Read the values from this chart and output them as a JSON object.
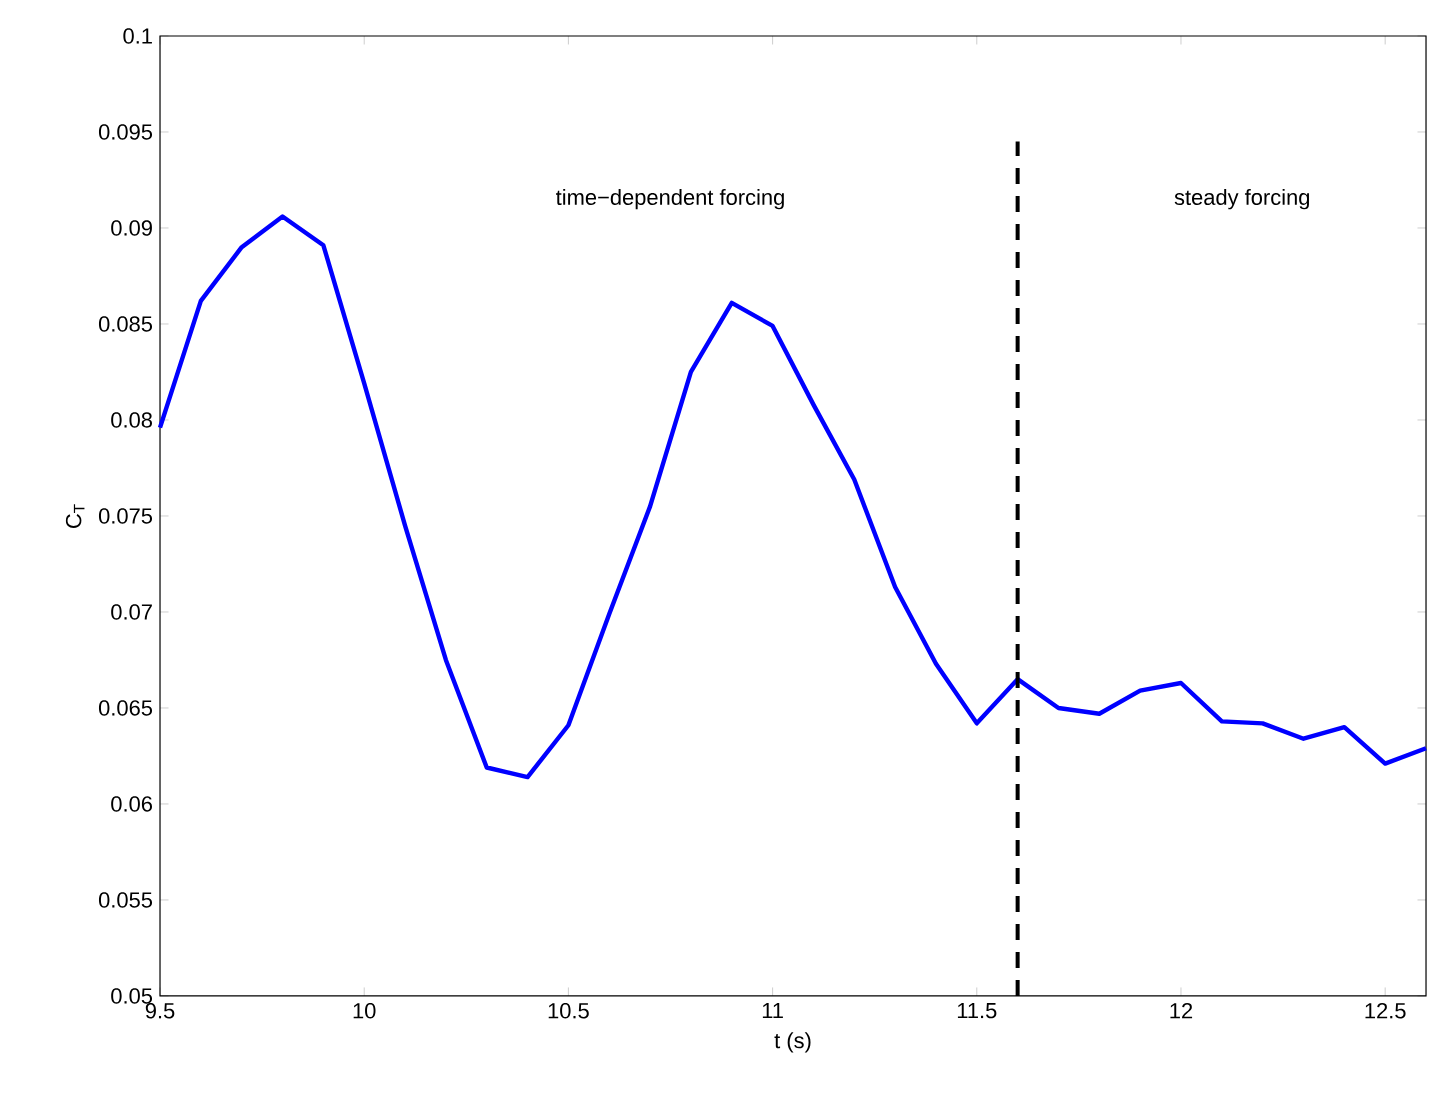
{
  "chart_data": {
    "type": "line",
    "xlabel": "t (s)",
    "ylabel": "C$_{T}$",
    "x": [
      9.5,
      9.6,
      9.7,
      9.8,
      9.9,
      10.0,
      10.1,
      10.2,
      10.3,
      10.4,
      10.5,
      10.6,
      10.7,
      10.8,
      10.9,
      11.0,
      11.1,
      11.2,
      11.3,
      11.4,
      11.5,
      11.6,
      11.7,
      11.8,
      11.9,
      12.0,
      12.1,
      12.2,
      12.3,
      12.4,
      12.5,
      12.6
    ],
    "series": [
      {
        "color": "#0000ff",
        "values": [
          0.0796,
          0.0862,
          0.089,
          0.0906,
          0.0891,
          0.0819,
          0.0745,
          0.0675,
          0.0619,
          0.0614,
          0.0641,
          0.0699,
          0.0755,
          0.0825,
          0.0861,
          0.0849,
          0.0808,
          0.0769,
          0.0713,
          0.0673,
          0.0642,
          0.0665,
          0.065,
          0.0647,
          0.0659,
          0.0663,
          0.0643,
          0.0642,
          0.0634,
          0.064,
          0.0621,
          0.0629
        ]
      }
    ],
    "xlim": [
      9.5,
      12.6
    ],
    "ylim": [
      0.05,
      0.1
    ],
    "xticks": [
      9.5,
      10,
      10.5,
      11,
      11.5,
      12,
      12.5
    ],
    "yticks": [
      0.05,
      0.055,
      0.06,
      0.065,
      0.07,
      0.075,
      0.08,
      0.085,
      0.09,
      0.095,
      0.1
    ],
    "ref_lines": [
      {
        "axis": "x",
        "value": 11.6,
        "color": "#000000",
        "line_style": "dashed"
      }
    ],
    "annotations": [
      "time−dependent forcing",
      "steady forcing"
    ],
    "grid": false,
    "marker": "none",
    "line_style": "solid"
  }
}
